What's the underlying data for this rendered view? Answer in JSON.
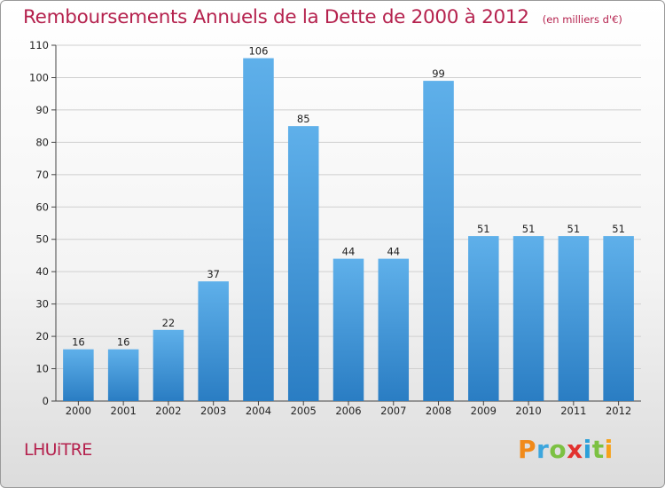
{
  "title": "Remboursements Annuels de la Dette de 2000 à 2012",
  "subtitle": "(en milliers d'€)",
  "town": "LHUiTRE",
  "logo": {
    "letters": [
      "P",
      "r",
      "o",
      "x",
      "i",
      "t",
      "i"
    ],
    "colors": [
      "#f18a1a",
      "#3da6dd",
      "#7cc142",
      "#e2322f",
      "#2ba0d9",
      "#7cc142",
      "#f6a21b"
    ]
  },
  "colors": {
    "title": "#b5224e",
    "bar_top": "#5fb0ea",
    "bar_bottom": "#2a7dc3",
    "grid": "#cfcfcf"
  },
  "chart_data": {
    "type": "bar",
    "categories": [
      "2000",
      "2001",
      "2002",
      "2003",
      "2004",
      "2005",
      "2006",
      "2007",
      "2008",
      "2009",
      "2010",
      "2011",
      "2012"
    ],
    "values": [
      16,
      16,
      22,
      37,
      106,
      85,
      44,
      44,
      99,
      51,
      51,
      51,
      51
    ],
    "title": "Remboursements Annuels de la Dette de 2000 à 2012",
    "ylim": [
      0,
      110
    ],
    "yticks": [
      0,
      10,
      20,
      30,
      40,
      50,
      60,
      70,
      80,
      90,
      100,
      110
    ],
    "grid": true,
    "data_labels": true
  }
}
